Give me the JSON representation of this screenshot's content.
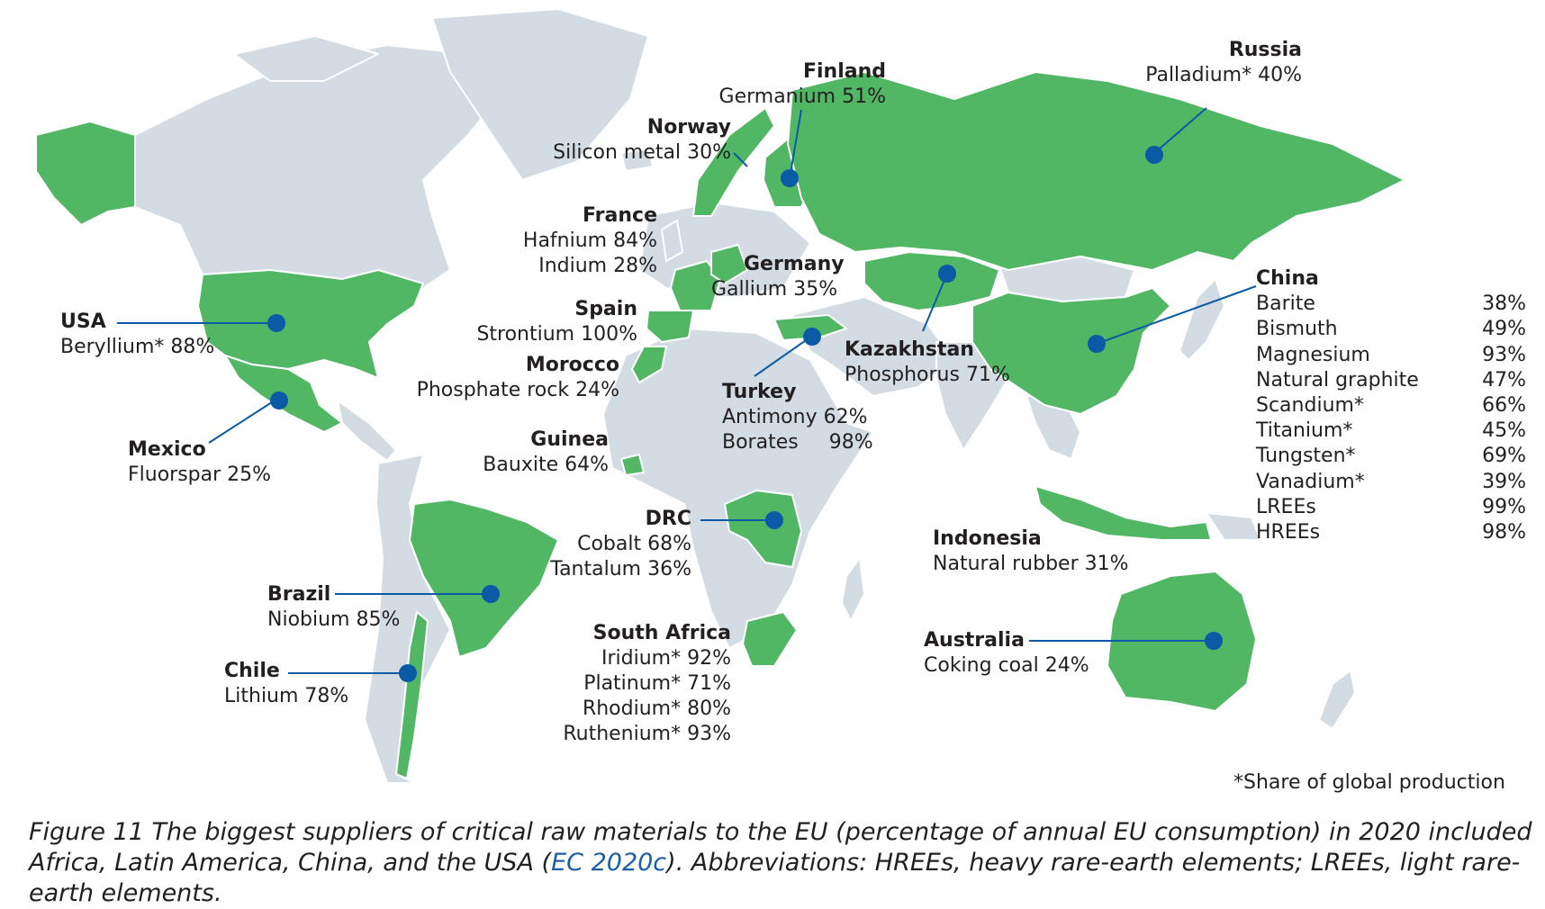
{
  "colors": {
    "land": "#d3dce3",
    "supplier": "#52b765",
    "marker": "#0a5aa5",
    "border": "#ffffff",
    "caption_link": "#1a5fa8"
  },
  "suppliers": {
    "usa": {
      "name": "USA",
      "materials": [
        "Beryllium* 88%"
      ]
    },
    "mexico": {
      "name": "Mexico",
      "materials": [
        "Fluorspar 25%"
      ]
    },
    "brazil": {
      "name": "Brazil",
      "materials": [
        "Niobium 85%"
      ]
    },
    "chile": {
      "name": "Chile",
      "materials": [
        "Lithium 78%"
      ]
    },
    "finland": {
      "name": "Finland",
      "materials": [
        "Germanium 51%"
      ]
    },
    "norway": {
      "name": "Norway",
      "materials": [
        "Silicon metal 30%"
      ]
    },
    "france": {
      "name": "France",
      "materials": [
        "Hafnium 84%",
        "Indium 28%"
      ]
    },
    "spain": {
      "name": "Spain",
      "materials": [
        "Strontium 100%"
      ]
    },
    "morocco": {
      "name": "Morocco",
      "materials": [
        "Phosphate rock 24%"
      ]
    },
    "guinea": {
      "name": "Guinea",
      "materials": [
        "Bauxite 64%"
      ]
    },
    "germany": {
      "name": "Germany",
      "materials": [
        "Gallium 35%"
      ]
    },
    "turkey": {
      "name": "Turkey",
      "materials": [
        "Antimony 62%",
        "Borates",
        "98%"
      ]
    },
    "kazakhstan": {
      "name": "Kazakhstan",
      "materials": [
        "Phosphorus 71%"
      ]
    },
    "drc": {
      "name": "DRC",
      "materials": [
        "Cobalt 68%",
        "Tantalum 36%"
      ]
    },
    "south_africa": {
      "name": "South Africa",
      "materials": [
        "Iridium* 92%",
        "Platinum* 71%",
        "Rhodium* 80%",
        "Ruthenium* 93%"
      ]
    },
    "russia": {
      "name": "Russia",
      "materials": [
        "Palladium* 40%"
      ]
    },
    "indonesia": {
      "name": "Indonesia",
      "materials": [
        "Natural rubber 31%"
      ]
    },
    "australia": {
      "name": "Australia",
      "materials": [
        "Coking coal 24%"
      ]
    }
  },
  "china": {
    "name": "China",
    "items": [
      {
        "material": "Barite",
        "share": "38%"
      },
      {
        "material": "Bismuth",
        "share": "49%"
      },
      {
        "material": "Magnesium",
        "share": "93%"
      },
      {
        "material": "Natural graphite",
        "share": "47%"
      },
      {
        "material": "Scandium*",
        "share": "66%"
      },
      {
        "material": "Titanium*",
        "share": "45%"
      },
      {
        "material": "Tungsten*",
        "share": "69%"
      },
      {
        "material": "Vanadium*",
        "share": "39%"
      },
      {
        "material": "LREEs",
        "share": "99%"
      },
      {
        "material": "HREEs",
        "share": "98%"
      }
    ]
  },
  "footnote": "*Share of global production",
  "caption": {
    "before_link": "Figure 11  The biggest suppliers of critical raw materials to the EU (percentage of annual EU consumption) in 2020 included Africa, Latin America, China, and the USA (",
    "link": "EC 2020c",
    "after_link": "). Abbreviations: HREEs, heavy rare-earth elements; LREEs, light rare-earth elements."
  }
}
